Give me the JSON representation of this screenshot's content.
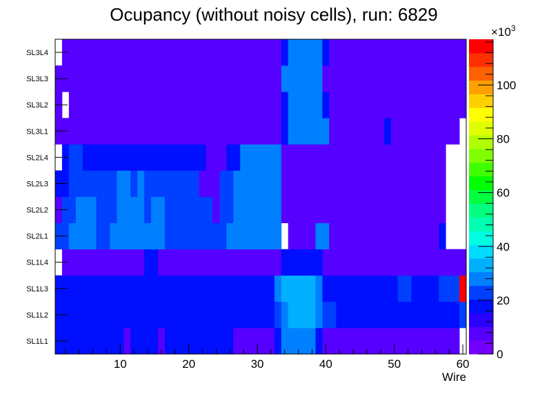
{
  "chart_data": {
    "type": "heatmap",
    "title": "Ocupancy (without noisy cells), run: 6829",
    "xlabel": "Wire",
    "ylabel": "",
    "x_range": [
      0.5,
      60.5
    ],
    "x_ticks": [
      10,
      20,
      30,
      40,
      50,
      60
    ],
    "rows": [
      "SL1L1",
      "SL1L2",
      "SL1L3",
      "SL1L4",
      "SL2L1",
      "SL2L2",
      "SL2L3",
      "SL2L4",
      "SL3L1",
      "SL3L2",
      "SL3L3",
      "SL3L4"
    ],
    "z_range": [
      0,
      117000
    ],
    "z_ticks": [
      0,
      20,
      40,
      60,
      80,
      100
    ],
    "z_exponent": "×10",
    "z_exponent_power": "3",
    "palette": [
      "#7300ff",
      "#5600ff",
      "#2a00ff",
      "#0010ff",
      "#0040ff",
      "#0080ff",
      "#00b0ff",
      "#00dcff",
      "#00ffe0",
      "#00ffb0",
      "#00ff80",
      "#00ff40",
      "#00ff00",
      "#40ff00",
      "#80ff00",
      "#b0ff00",
      "#e0ff00",
      "#ffff00",
      "#ffd000",
      "#ffa000",
      "#ff6000",
      "#ff3000",
      "#ff0000"
    ],
    "cells": [
      {
        "row": "SL1L1",
        "segments": [
          [
            1,
            10,
            18
          ],
          [
            11,
            11,
            9
          ],
          [
            12,
            15,
            18
          ],
          [
            16,
            16,
            9
          ],
          [
            17,
            26,
            18
          ],
          [
            27,
            28,
            10
          ],
          [
            29,
            32,
            10
          ],
          [
            33,
            33,
            18
          ],
          [
            34,
            38,
            27
          ],
          [
            39,
            39,
            18
          ],
          [
            40,
            59,
            10
          ],
          [
            60,
            60,
            0
          ]
        ]
      },
      {
        "row": "SL1L2",
        "segments": [
          [
            1,
            32,
            18
          ],
          [
            33,
            33,
            22
          ],
          [
            34,
            34,
            27
          ],
          [
            35,
            38,
            33
          ],
          [
            39,
            39,
            27
          ],
          [
            40,
            41,
            22
          ],
          [
            42,
            51,
            18
          ],
          [
            52,
            59,
            18
          ],
          [
            60,
            60,
            22
          ]
        ]
      },
      {
        "row": "SL1L3",
        "segments": [
          [
            1,
            32,
            18
          ],
          [
            33,
            33,
            27
          ],
          [
            34,
            38,
            33
          ],
          [
            39,
            39,
            27
          ],
          [
            40,
            50,
            18
          ],
          [
            51,
            52,
            22
          ],
          [
            53,
            56,
            18
          ],
          [
            57,
            59,
            22
          ],
          [
            60,
            60,
            117
          ]
        ]
      },
      {
        "row": "SL1L4",
        "segments": [
          [
            1,
            1,
            0
          ],
          [
            2,
            2,
            8
          ],
          [
            3,
            13,
            10
          ],
          [
            14,
            15,
            18
          ],
          [
            16,
            33,
            10
          ],
          [
            34,
            39,
            18
          ],
          [
            40,
            48,
            10
          ],
          [
            49,
            55,
            8
          ],
          [
            56,
            60,
            10
          ]
        ]
      },
      {
        "row": "SL2L1",
        "segments": [
          [
            1,
            2,
            22
          ],
          [
            3,
            6,
            27
          ],
          [
            7,
            8,
            22
          ],
          [
            9,
            16,
            27
          ],
          [
            17,
            23,
            22
          ],
          [
            24,
            25,
            22
          ],
          [
            26,
            27,
            27
          ],
          [
            28,
            33,
            27
          ],
          [
            34,
            34,
            0
          ],
          [
            35,
            38,
            10
          ],
          [
            39,
            40,
            27
          ],
          [
            41,
            56,
            10
          ],
          [
            57,
            57,
            18
          ],
          [
            58,
            60,
            0
          ]
        ]
      },
      {
        "row": "SL2L2",
        "segments": [
          [
            1,
            1,
            10
          ],
          [
            2,
            3,
            22
          ],
          [
            4,
            6,
            27
          ],
          [
            7,
            9,
            22
          ],
          [
            10,
            13,
            27
          ],
          [
            14,
            14,
            22
          ],
          [
            15,
            16,
            27
          ],
          [
            17,
            23,
            22
          ],
          [
            24,
            24,
            10
          ],
          [
            25,
            26,
            22
          ],
          [
            27,
            33,
            27
          ],
          [
            34,
            57,
            10
          ],
          [
            58,
            60,
            0
          ]
        ]
      },
      {
        "row": "SL2L3",
        "segments": [
          [
            1,
            2,
            18
          ],
          [
            3,
            4,
            22
          ],
          [
            5,
            9,
            22
          ],
          [
            10,
            11,
            27
          ],
          [
            12,
            12,
            22
          ],
          [
            13,
            13,
            27
          ],
          [
            14,
            21,
            22
          ],
          [
            22,
            24,
            10
          ],
          [
            25,
            26,
            22
          ],
          [
            27,
            33,
            27
          ],
          [
            34,
            45,
            10
          ],
          [
            46,
            57,
            10
          ],
          [
            58,
            60,
            0
          ]
        ]
      },
      {
        "row": "SL2L4",
        "segments": [
          [
            1,
            1,
            0
          ],
          [
            2,
            2,
            18
          ],
          [
            3,
            4,
            22
          ],
          [
            5,
            22,
            18
          ],
          [
            23,
            25,
            10
          ],
          [
            26,
            27,
            18
          ],
          [
            28,
            33,
            27
          ],
          [
            34,
            45,
            10
          ],
          [
            46,
            49,
            8
          ],
          [
            50,
            51,
            10
          ],
          [
            52,
            52,
            8
          ],
          [
            53,
            57,
            10
          ],
          [
            58,
            60,
            0
          ]
        ]
      },
      {
        "row": "SL3L1",
        "segments": [
          [
            1,
            2,
            8
          ],
          [
            3,
            33,
            10
          ],
          [
            34,
            34,
            18
          ],
          [
            35,
            40,
            27
          ],
          [
            41,
            48,
            10
          ],
          [
            49,
            49,
            18
          ],
          [
            50,
            58,
            10
          ],
          [
            59,
            59,
            8
          ],
          [
            60,
            60,
            0
          ]
        ]
      },
      {
        "row": "SL3L2",
        "segments": [
          [
            1,
            1,
            10
          ],
          [
            2,
            2,
            0
          ],
          [
            3,
            33,
            10
          ],
          [
            34,
            34,
            18
          ],
          [
            35,
            35,
            27
          ],
          [
            36,
            39,
            27
          ],
          [
            40,
            40,
            18
          ],
          [
            41,
            58,
            10
          ],
          [
            59,
            60,
            8
          ]
        ]
      },
      {
        "row": "SL3L3",
        "segments": [
          [
            1,
            1,
            10
          ],
          [
            2,
            2,
            8
          ],
          [
            3,
            33,
            10
          ],
          [
            34,
            34,
            27
          ],
          [
            35,
            39,
            27
          ],
          [
            40,
            43,
            10
          ],
          [
            44,
            44,
            8
          ],
          [
            45,
            57,
            10
          ],
          [
            58,
            60,
            8
          ]
        ]
      },
      {
        "row": "SL3L4",
        "segments": [
          [
            1,
            1,
            0
          ],
          [
            2,
            3,
            8
          ],
          [
            4,
            33,
            10
          ],
          [
            34,
            34,
            18
          ],
          [
            35,
            35,
            27
          ],
          [
            36,
            39,
            27
          ],
          [
            40,
            40,
            18
          ],
          [
            41,
            58,
            10
          ],
          [
            59,
            60,
            8
          ]
        ]
      }
    ]
  }
}
